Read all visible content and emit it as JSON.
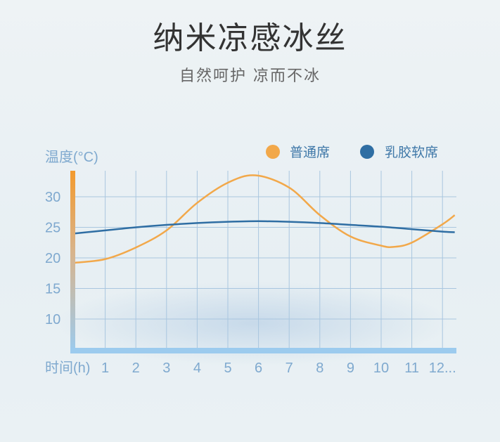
{
  "header": {
    "title": "纳米凉感冰丝",
    "subtitle": "自然呵护 凉而不冰"
  },
  "chart_data": {
    "type": "line",
    "title": "",
    "xlabel": "时间(h)",
    "ylabel": "温度(°C)",
    "x_ticks": [
      "1",
      "2",
      "3",
      "4",
      "5",
      "6",
      "7",
      "8",
      "9",
      "10",
      "11",
      "12..."
    ],
    "y_ticks": [
      "10",
      "15",
      "20",
      "25",
      "30"
    ],
    "xlim": [
      0,
      12.4
    ],
    "ylim": [
      4.8,
      34.3
    ],
    "grid": true,
    "legend_position": "top-right",
    "series": [
      {
        "name": "普通席",
        "color": "#f2a84a",
        "x": [
          0,
          1,
          2,
          3,
          4,
          5,
          5.9,
          7,
          8,
          9,
          10,
          10.4,
          11,
          12,
          12.4
        ],
        "y": [
          19.2,
          19.8,
          21.7,
          24.5,
          29,
          32.3,
          33.5,
          31.5,
          27,
          23.5,
          22,
          21.8,
          22.5,
          25.5,
          27
        ]
      },
      {
        "name": "乳胶软席",
        "color": "#2f6ea3",
        "x": [
          0,
          1,
          2,
          3,
          4,
          5,
          6,
          7,
          8,
          9,
          10,
          11,
          12,
          12.4
        ],
        "y": [
          24,
          24.5,
          25,
          25.4,
          25.7,
          25.9,
          26,
          25.9,
          25.7,
          25.4,
          25.1,
          24.7,
          24.3,
          24.2
        ]
      }
    ]
  }
}
